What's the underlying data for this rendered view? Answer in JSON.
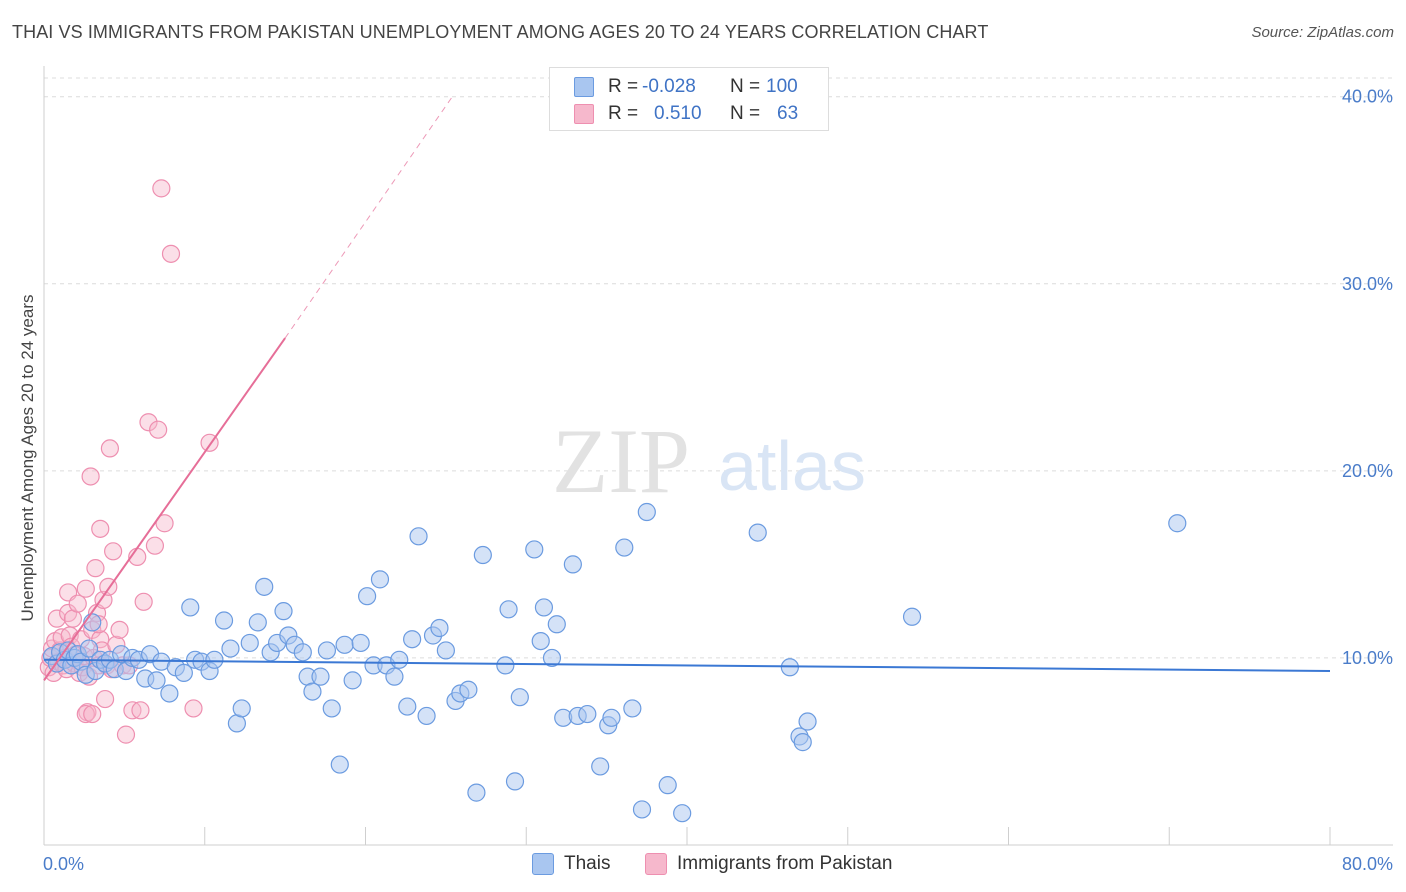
{
  "title": "THAI VS IMMIGRANTS FROM PAKISTAN UNEMPLOYMENT AMONG AGES 20 TO 24 YEARS CORRELATION CHART",
  "source": "Source: ZipAtlas.com",
  "watermark": {
    "zip": "ZIP",
    "atlas": "atlas"
  },
  "colors": {
    "thai_fill": "#a9c6f0",
    "thai_stroke": "#6b9be0",
    "thai_line": "#3b78d4",
    "pak_fill": "#f6b8cc",
    "pak_stroke": "#ee8fb0",
    "pak_line": "#e66e98",
    "axis_text": "#4a7cc9",
    "grid": "#dcdcdc"
  },
  "legend_top": {
    "rows": [
      {
        "r_label": "R =",
        "r_value": "-0.028",
        "n_label": "N =",
        "n_value": "100"
      },
      {
        "r_label": "R =",
        "r_value": "0.510",
        "n_label": "N =",
        "n_value": "63"
      }
    ]
  },
  "legend_bottom": {
    "thai": "Thais",
    "pak": "Immigrants from Pakistan"
  },
  "chart_data": {
    "type": "scatter",
    "title": "THAI VS IMMIGRANTS FROM PAKISTAN UNEMPLOYMENT AMONG AGES 20 TO 24 YEARS CORRELATION CHART",
    "xlabel": "",
    "ylabel": "Unemployment Among Ages 20 to 24 years",
    "xlim": [
      0,
      80
    ],
    "ylim": [
      0,
      41
    ],
    "x_tick_labels": [
      "0.0%",
      "80.0%"
    ],
    "y_ticks": [
      10,
      20,
      30,
      40
    ],
    "y_tick_labels": [
      "10.0%",
      "20.0%",
      "30.0%",
      "40.0%"
    ],
    "grid": true,
    "series": [
      {
        "name": "Thais",
        "r": -0.028,
        "n": 100,
        "trend": {
          "x0": 0,
          "y0": 9.9,
          "x1": 80,
          "y1": 9.3
        },
        "points": [
          [
            0.5,
            10.1
          ],
          [
            0.8,
            9.7
          ],
          [
            1.0,
            10.3
          ],
          [
            1.3,
            9.9
          ],
          [
            1.5,
            10.4
          ],
          [
            1.7,
            9.6
          ],
          [
            1.9,
            10.0
          ],
          [
            2.1,
            10.2
          ],
          [
            2.3,
            9.8
          ],
          [
            2.6,
            9.1
          ],
          [
            2.8,
            10.5
          ],
          [
            3.0,
            11.9
          ],
          [
            3.2,
            9.3
          ],
          [
            3.5,
            9.9
          ],
          [
            3.8,
            9.7
          ],
          [
            4.1,
            9.9
          ],
          [
            4.4,
            9.4
          ],
          [
            4.8,
            10.2
          ],
          [
            5.1,
            9.3
          ],
          [
            5.5,
            10.0
          ],
          [
            5.9,
            9.9
          ],
          [
            6.3,
            8.9
          ],
          [
            6.6,
            10.2
          ],
          [
            7.0,
            8.8
          ],
          [
            7.3,
            9.8
          ],
          [
            7.8,
            8.1
          ],
          [
            8.2,
            9.5
          ],
          [
            8.7,
            9.2
          ],
          [
            9.1,
            12.7
          ],
          [
            9.4,
            9.9
          ],
          [
            9.8,
            9.8
          ],
          [
            10.3,
            9.3
          ],
          [
            10.6,
            9.9
          ],
          [
            11.2,
            12.0
          ],
          [
            11.6,
            10.5
          ],
          [
            12.0,
            6.5
          ],
          [
            12.3,
            7.3
          ],
          [
            12.8,
            10.8
          ],
          [
            13.3,
            11.9
          ],
          [
            13.7,
            13.8
          ],
          [
            14.1,
            10.3
          ],
          [
            14.5,
            10.8
          ],
          [
            14.9,
            12.5
          ],
          [
            15.2,
            11.2
          ],
          [
            15.6,
            10.7
          ],
          [
            16.1,
            10.3
          ],
          [
            16.4,
            9.0
          ],
          [
            16.7,
            8.2
          ],
          [
            17.2,
            9.0
          ],
          [
            17.6,
            10.4
          ],
          [
            17.9,
            7.3
          ],
          [
            18.4,
            4.3
          ],
          [
            18.7,
            10.7
          ],
          [
            19.2,
            8.8
          ],
          [
            19.7,
            10.8
          ],
          [
            20.1,
            13.3
          ],
          [
            20.5,
            9.6
          ],
          [
            20.9,
            14.2
          ],
          [
            21.3,
            9.6
          ],
          [
            21.8,
            9.0
          ],
          [
            22.1,
            9.9
          ],
          [
            22.6,
            7.4
          ],
          [
            22.9,
            11.0
          ],
          [
            23.3,
            16.5
          ],
          [
            23.8,
            6.9
          ],
          [
            24.2,
            11.2
          ],
          [
            24.6,
            11.6
          ],
          [
            25.0,
            10.4
          ],
          [
            25.6,
            7.7
          ],
          [
            25.9,
            8.1
          ],
          [
            26.4,
            8.3
          ],
          [
            26.9,
            2.8
          ],
          [
            27.3,
            15.5
          ],
          [
            28.7,
            9.6
          ],
          [
            28.9,
            12.6
          ],
          [
            29.3,
            3.4
          ],
          [
            29.6,
            7.9
          ],
          [
            30.5,
            15.8
          ],
          [
            30.9,
            10.9
          ],
          [
            31.1,
            12.7
          ],
          [
            31.6,
            10.0
          ],
          [
            31.9,
            11.8
          ],
          [
            32.3,
            6.8
          ],
          [
            32.9,
            15.0
          ],
          [
            33.2,
            6.9
          ],
          [
            33.8,
            7.0
          ],
          [
            34.6,
            4.2
          ],
          [
            35.1,
            6.4
          ],
          [
            35.3,
            6.8
          ],
          [
            36.1,
            15.9
          ],
          [
            36.6,
            7.3
          ],
          [
            37.2,
            1.9
          ],
          [
            37.5,
            17.8
          ],
          [
            38.8,
            3.2
          ],
          [
            39.7,
            1.7
          ],
          [
            44.4,
            16.7
          ],
          [
            46.4,
            9.5
          ],
          [
            47.0,
            5.8
          ],
          [
            47.2,
            5.5
          ],
          [
            47.5,
            6.6
          ],
          [
            54.0,
            12.2
          ],
          [
            70.5,
            17.2
          ]
        ]
      },
      {
        "name": "Immigrants from Pakistan",
        "r": 0.51,
        "n": 63,
        "trend": {
          "x0": 0,
          "y0": 8.8,
          "x1": 15.0,
          "y1": 27.1,
          "dashed_to_x": 25.4,
          "dashed_to_y": 40.0
        },
        "points": [
          [
            0.3,
            9.5
          ],
          [
            0.4,
            10.0
          ],
          [
            0.5,
            10.5
          ],
          [
            0.6,
            9.2
          ],
          [
            0.7,
            10.9
          ],
          [
            0.8,
            12.1
          ],
          [
            0.9,
            9.8
          ],
          [
            1.0,
            10.4
          ],
          [
            1.1,
            11.1
          ],
          [
            1.2,
            9.6
          ],
          [
            1.3,
            10.0
          ],
          [
            1.4,
            9.4
          ],
          [
            1.5,
            12.4
          ],
          [
            1.5,
            13.5
          ],
          [
            1.6,
            11.2
          ],
          [
            1.7,
            10.6
          ],
          [
            1.8,
            12.1
          ],
          [
            1.9,
            9.7
          ],
          [
            2.0,
            10.2
          ],
          [
            2.1,
            12.9
          ],
          [
            2.2,
            9.2
          ],
          [
            2.3,
            11.0
          ],
          [
            2.4,
            9.5
          ],
          [
            2.5,
            10.1
          ],
          [
            2.6,
            13.7
          ],
          [
            2.7,
            7.1
          ],
          [
            2.8,
            9.0
          ],
          [
            2.9,
            19.7
          ],
          [
            3.0,
            11.5
          ],
          [
            3.1,
            10.0
          ],
          [
            3.2,
            14.8
          ],
          [
            3.3,
            12.4
          ],
          [
            3.4,
            9.6
          ],
          [
            3.5,
            16.9
          ],
          [
            3.5,
            11.0
          ],
          [
            3.6,
            10.4
          ],
          [
            3.7,
            13.1
          ],
          [
            3.8,
            7.8
          ],
          [
            3.9,
            9.6
          ],
          [
            4.0,
            13.8
          ],
          [
            4.1,
            21.2
          ],
          [
            4.2,
            9.4
          ],
          [
            4.3,
            15.7
          ],
          [
            4.5,
            10.7
          ],
          [
            4.7,
            11.5
          ],
          [
            4.9,
            9.6
          ],
          [
            5.1,
            5.9
          ],
          [
            5.3,
            9.6
          ],
          [
            5.5,
            7.2
          ],
          [
            5.8,
            15.4
          ],
          [
            6.0,
            7.2
          ],
          [
            6.2,
            13.0
          ],
          [
            6.5,
            22.6
          ],
          [
            6.9,
            16.0
          ],
          [
            7.1,
            22.2
          ],
          [
            7.3,
            35.1
          ],
          [
            7.5,
            17.2
          ],
          [
            7.9,
            31.6
          ],
          [
            9.3,
            7.3
          ],
          [
            10.3,
            21.5
          ],
          [
            2.6,
            7.0
          ],
          [
            3.0,
            7.0
          ],
          [
            3.4,
            11.8
          ]
        ]
      }
    ]
  }
}
